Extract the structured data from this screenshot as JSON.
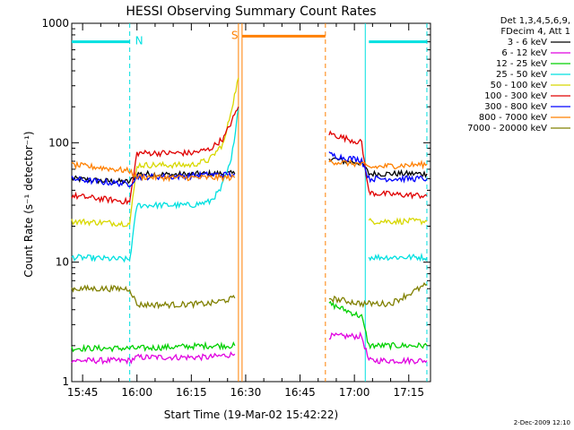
{
  "chart_data": {
    "type": "line",
    "title": "HESSI Observing Summary Count Rates",
    "xlabel": "Start Time (19-Mar-02 15:42:22)",
    "ylabel": "Count Rate (s⁻¹ detector⁻¹)",
    "y_scale": "log",
    "ylim": [
      1,
      1000
    ],
    "xlim": [
      "15:42",
      "17:21"
    ],
    "x_ticks": [
      "15:45",
      "16:00",
      "16:15",
      "16:30",
      "16:45",
      "17:00",
      "17:15"
    ],
    "y_ticks": [
      "1",
      "10",
      "100",
      "1000"
    ],
    "legend_header": [
      "Det 1,3,4,5,6,9,",
      "FDecim 4, Att 1"
    ],
    "legend_position": "outside-right",
    "series": [
      {
        "name": "3 - 6 keV",
        "color": "#000000",
        "segments": [
          {
            "x": [
              "15:42",
              "15:50",
              "15:58",
              "16:00",
              "16:10",
              "16:20",
              "16:27"
            ],
            "y": [
              50,
              48,
              47,
              55,
              54,
              55,
              55
            ]
          },
          {
            "x": [
              "16:53",
              "16:57",
              "17:02",
              "17:04",
              "17:10",
              "17:20"
            ],
            "y": [
              75,
              70,
              68,
              55,
              55,
              55
            ]
          }
        ]
      },
      {
        "name": "6 - 12 keV",
        "color": "#e000e0",
        "segments": [
          {
            "x": [
              "15:42",
              "15:58",
              "16:00",
              "16:20",
              "16:27"
            ],
            "y": [
              1.5,
              1.5,
              1.6,
              1.6,
              1.7
            ]
          },
          {
            "x": [
              "16:53",
              "17:02",
              "17:04",
              "17:20"
            ],
            "y": [
              2.4,
              2.4,
              1.5,
              1.5
            ]
          }
        ]
      },
      {
        "name": "12 - 25 keV",
        "color": "#00d000",
        "segments": [
          {
            "x": [
              "15:42",
              "15:58",
              "16:00",
              "16:20",
              "16:27"
            ],
            "y": [
              1.9,
              1.9,
              1.9,
              2.0,
              2.0
            ]
          },
          {
            "x": [
              "16:53",
              "17:02",
              "17:04",
              "17:20"
            ],
            "y": [
              4.5,
              3.5,
              2.0,
              2.0
            ]
          }
        ]
      },
      {
        "name": "25 - 50 keV",
        "color": "#00e0e0",
        "segments": [
          {
            "x": [
              "15:42",
              "15:58",
              "16:00",
              "16:15",
              "16:20",
              "16:23",
              "16:26",
              "16:28"
            ],
            "y": [
              11,
              10.5,
              30,
              30,
              32,
              40,
              70,
              200
            ]
          },
          {
            "x": [
              "17:04",
              "17:10",
              "17:20"
            ],
            "y": [
              11,
              11,
              11
            ]
          }
        ]
      },
      {
        "name": "50 - 100 keV",
        "color": "#d8d800",
        "segments": [
          {
            "x": [
              "15:42",
              "15:58",
              "16:00",
              "16:15",
              "16:20",
              "16:24",
              "16:28"
            ],
            "y": [
              22,
              21,
              65,
              65,
              72,
              100,
              350
            ]
          },
          {
            "x": [
              "17:04",
              "17:10",
              "17:20"
            ],
            "y": [
              22,
              22,
              22
            ]
          }
        ]
      },
      {
        "name": "100 - 300 keV",
        "color": "#e00000",
        "segments": [
          {
            "x": [
              "15:42",
              "15:58",
              "16:00",
              "16:15",
              "16:20",
              "16:24",
              "16:28"
            ],
            "y": [
              36,
              32,
              82,
              82,
              88,
              110,
              200
            ]
          },
          {
            "x": [
              "16:53",
              "16:57",
              "17:02",
              "17:04",
              "17:10",
              "17:20"
            ],
            "y": [
              120,
              110,
              100,
              38,
              37,
              36
            ]
          }
        ]
      },
      {
        "name": "300 - 800 keV",
        "color": "#0000ff",
        "segments": [
          {
            "x": [
              "15:42",
              "15:50",
              "15:58",
              "16:00",
              "16:10",
              "16:20",
              "16:27"
            ],
            "y": [
              50,
              47,
              45,
              52,
              52,
              54,
              54
            ]
          },
          {
            "x": [
              "16:53",
              "16:57",
              "17:02",
              "17:04",
              "17:10",
              "17:20"
            ],
            "y": [
              80,
              75,
              72,
              50,
              50,
              50
            ]
          }
        ]
      },
      {
        "name": "800 - 7000 keV",
        "color": "#ff8000",
        "segments": [
          {
            "x": [
              "15:42",
              "15:50",
              "15:58",
              "16:00",
              "16:10",
              "16:20",
              "16:27"
            ],
            "y": [
              65,
              62,
              58,
              52,
              51,
              51,
              51
            ]
          },
          {
            "x": [
              "16:53",
              "16:57",
              "17:02",
              "17:04",
              "17:10",
              "17:20"
            ],
            "y": [
              70,
              68,
              66,
              62,
              64,
              66
            ]
          }
        ]
      },
      {
        "name": "7000 - 20000 keV",
        "color": "#808000",
        "segments": [
          {
            "x": [
              "15:42",
              "15:50",
              "15:58",
              "16:00",
              "16:10",
              "16:20",
              "16:27"
            ],
            "y": [
              6,
              6,
              6,
              4.4,
              4.4,
              4.5,
              5
            ]
          },
          {
            "x": [
              "16:53",
              "17:02",
              "17:04",
              "17:10",
              "17:20"
            ],
            "y": [
              5,
              4.5,
              4.5,
              4.5,
              6.5
            ]
          }
        ]
      }
    ],
    "flags": [
      {
        "label": "N",
        "color": "#00e0e0",
        "level": 700,
        "spans": [
          [
            "15:42",
            "15:58"
          ],
          [
            "17:04",
            "17:20"
          ]
        ]
      },
      {
        "label": "S",
        "color": "#ff8000",
        "level": 780,
        "spans": [
          [
            "16:29",
            "16:52"
          ]
        ]
      }
    ],
    "boundaries": [
      {
        "x": "15:58",
        "color": "#00e0e0",
        "style": "dashed"
      },
      {
        "x": "16:28",
        "color": "#ff8000",
        "style": "solid"
      },
      {
        "x": "16:29",
        "color": "#ff8000",
        "style": "solid"
      },
      {
        "x": "16:52",
        "color": "#ff8000",
        "style": "dashed"
      },
      {
        "x": "17:03",
        "color": "#00e0e0",
        "style": "solid"
      },
      {
        "x": "17:20",
        "color": "#00e0e0",
        "style": "dashed"
      }
    ],
    "timestamp": "2-Dec-2009 12:10"
  }
}
